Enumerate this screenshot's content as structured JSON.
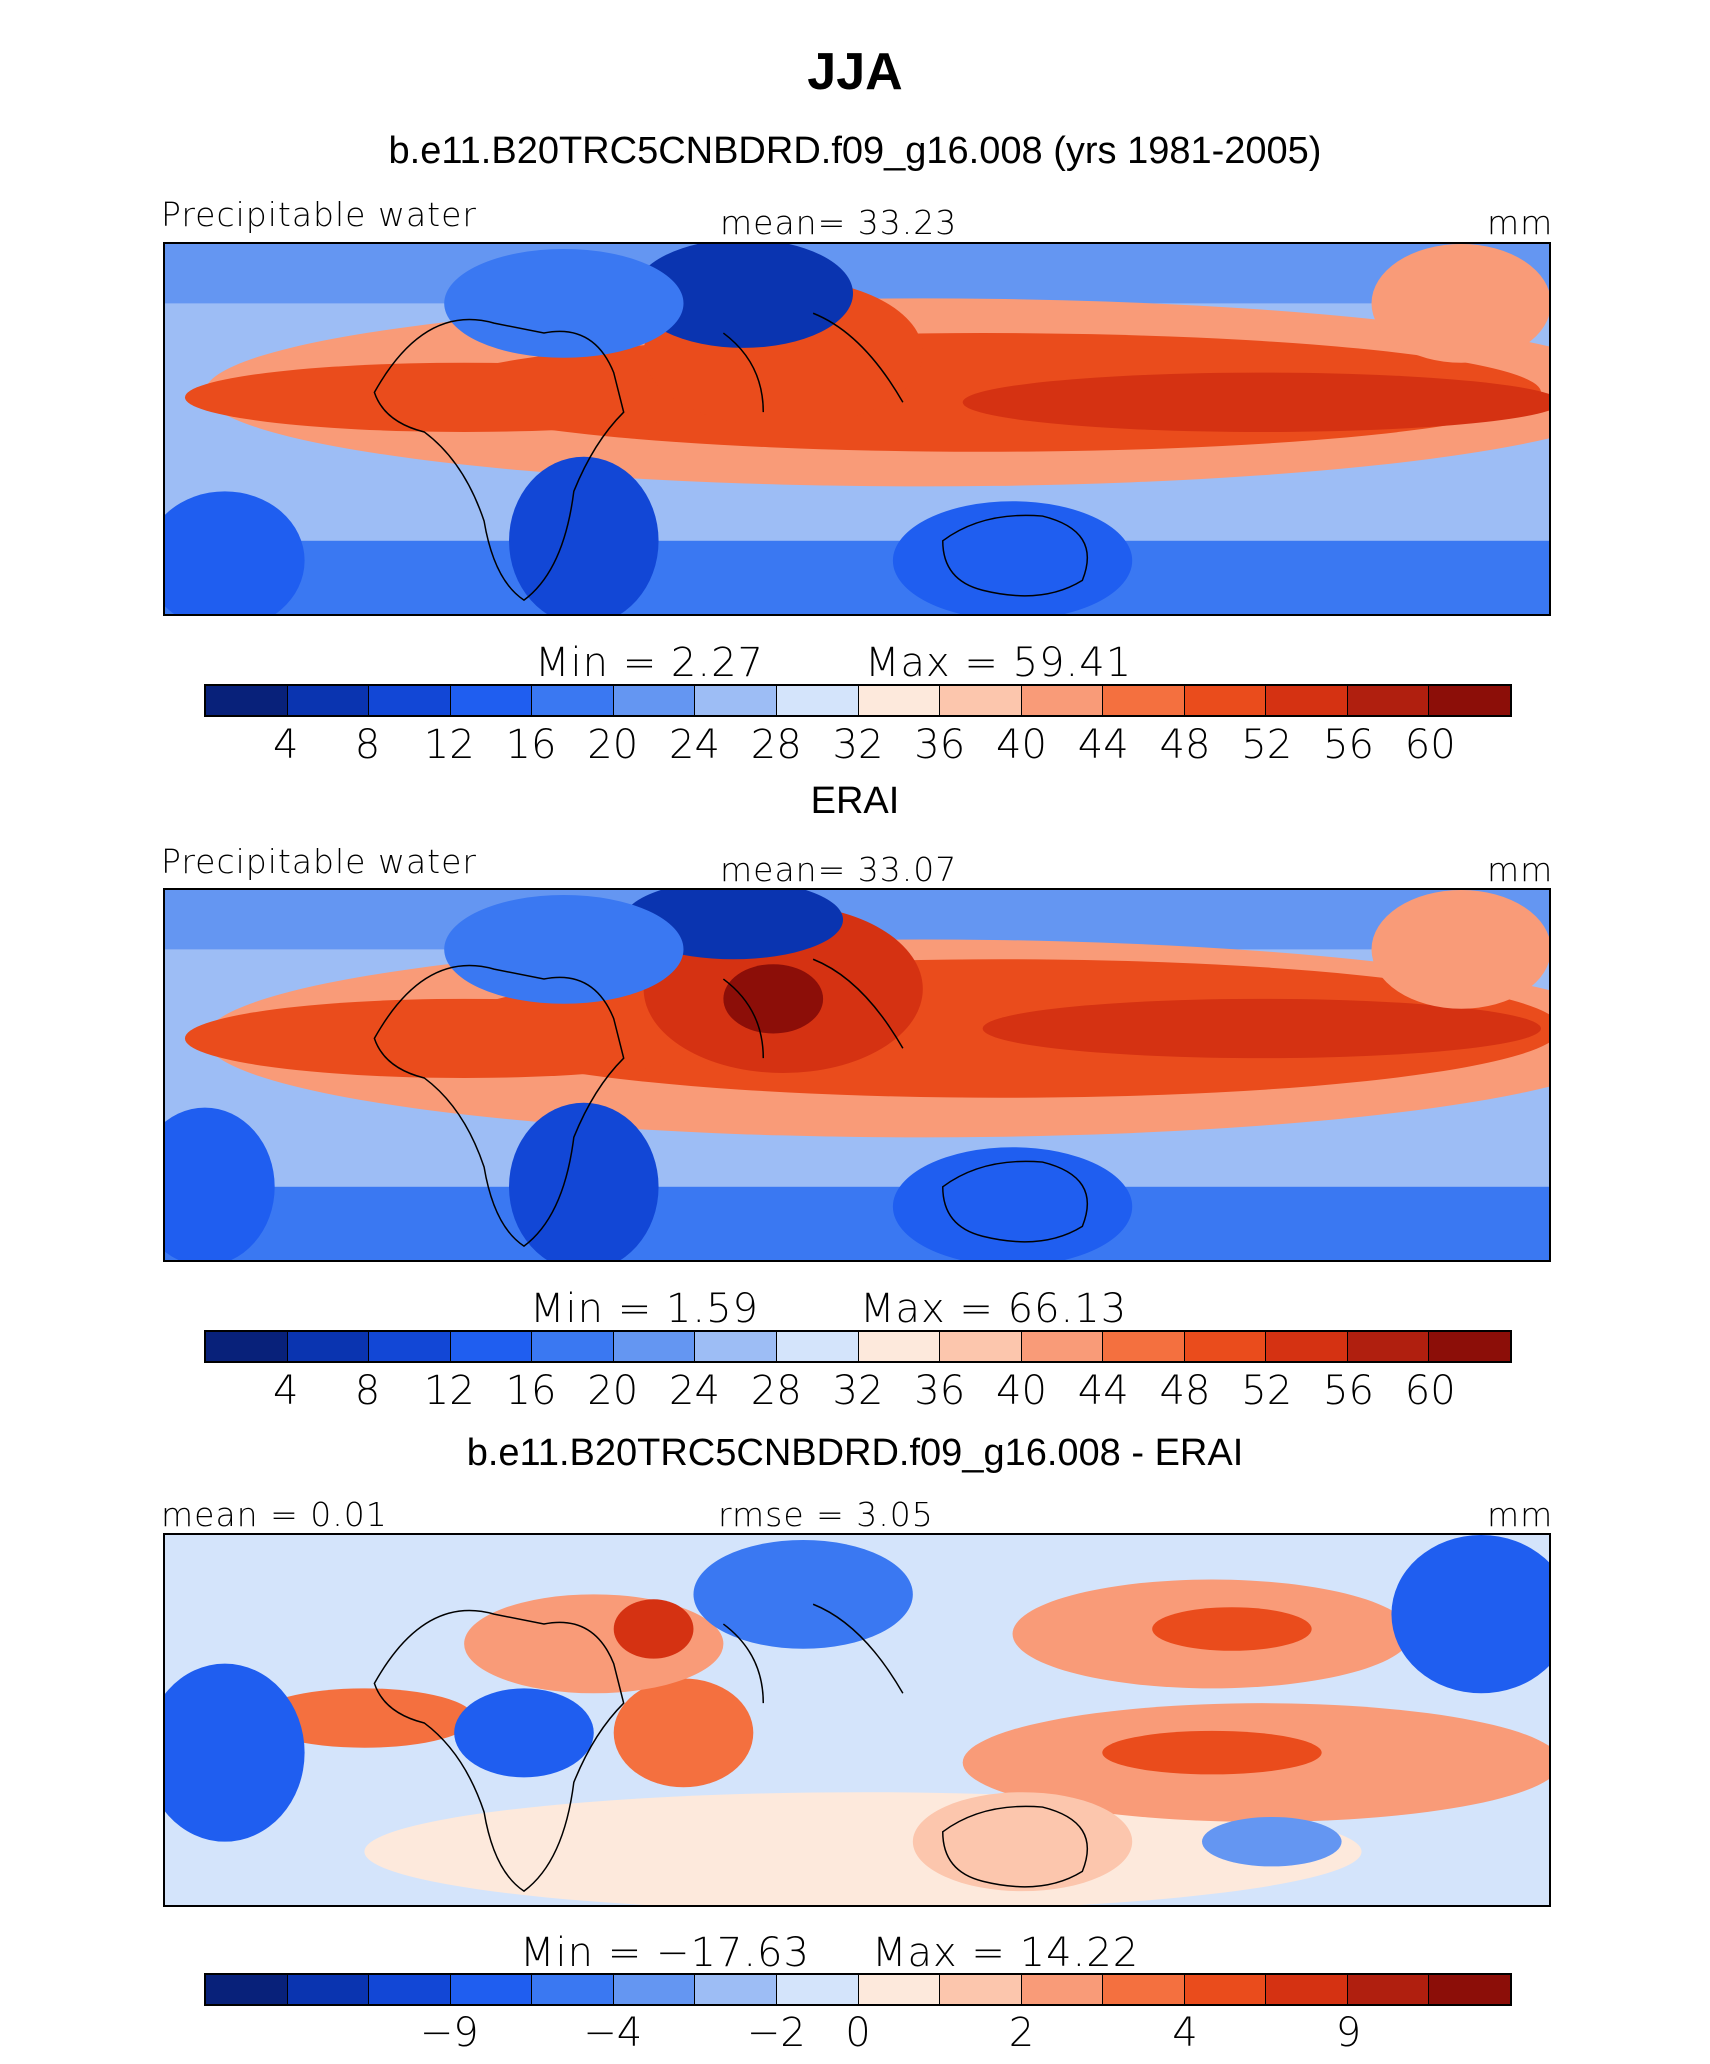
{
  "title": "JJA",
  "colorscale_abs": [
    "#08217a",
    "#0a34b0",
    "#1247d6",
    "#1f5ef0",
    "#3a78f2",
    "#6496f2",
    "#9dbdf5",
    "#d4e4fb",
    "#fde9dc",
    "#fcc6ad",
    "#f99b78",
    "#f4703f",
    "#ea4c1c",
    "#d53212",
    "#b01f0f",
    "#8c0e08"
  ],
  "colorscale_diff": [
    "#08217a",
    "#0a34b0",
    "#1247d6",
    "#1f5ef0",
    "#3a78f2",
    "#6496f2",
    "#9dbdf5",
    "#d4e4fb",
    "#fde9dc",
    "#fcc6ad",
    "#f99b78",
    "#f4703f",
    "#ea4c1c",
    "#d53212",
    "#b01f0f",
    "#8c0e08"
  ],
  "chart_data": [
    {
      "type": "heatmap",
      "title": "b.e11.B20TRC5CNBDRD.f09_g16.008 (yrs 1981-2005)",
      "left_label": "Precipitable water",
      "center_label": "mean=  33.23",
      "units": "mm",
      "min_text": "Min  =     2.27",
      "max_text": "Max  =    59.41",
      "mean": 33.23,
      "min": 2.27,
      "max": 59.41,
      "colorbar_ticks": [
        "4",
        "8",
        "12",
        "16",
        "20",
        "24",
        "28",
        "32",
        "36",
        "40",
        "44",
        "48",
        "52",
        "56",
        "60"
      ]
    },
    {
      "type": "heatmap",
      "title": "ERAI",
      "left_label": "Precipitable water",
      "center_label": "mean=  33.07",
      "units": "mm",
      "min_text": "Min  =     1.59",
      "max_text": "Max  =    66.13",
      "mean": 33.07,
      "min": 1.59,
      "max": 66.13,
      "colorbar_ticks": [
        "4",
        "8",
        "12",
        "16",
        "20",
        "24",
        "28",
        "32",
        "36",
        "40",
        "44",
        "48",
        "52",
        "56",
        "60"
      ]
    },
    {
      "type": "heatmap",
      "title": "b.e11.B20TRC5CNBDRD.f09_g16.008 - ERAI",
      "left_label": "mean =    0.01",
      "center_label": "rmse =     3.05",
      "units": "mm",
      "min_text": "Min  = −17.63",
      "max_text": "Max  =    14.22",
      "mean": 0.01,
      "rmse": 3.05,
      "min": -17.63,
      "max": 14.22,
      "colorbar_ticks": [
        "−9",
        "−4",
        "−2",
        "0",
        "2",
        "4",
        "9"
      ]
    }
  ]
}
